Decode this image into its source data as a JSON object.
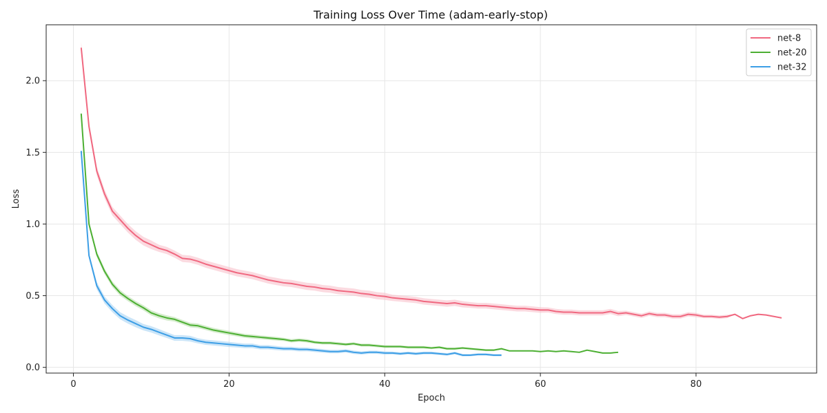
{
  "chart_data": {
    "type": "line",
    "title": "Training Loss Over Time (adam-early-stop)",
    "xlabel": "Epoch",
    "ylabel": "Loss",
    "xlim": [
      -3.5,
      95.5
    ],
    "ylim": [
      -0.04,
      2.39
    ],
    "xticks": [
      0,
      20,
      40,
      60,
      80
    ],
    "yticks": [
      0.0,
      0.5,
      1.0,
      1.5,
      2.0
    ],
    "xtick_labels": [
      "0",
      "20",
      "40",
      "60",
      "80"
    ],
    "ytick_labels": [
      "0.0",
      "0.5",
      "1.0",
      "1.5",
      "2.0"
    ],
    "grid": true,
    "legend_position": "top-right",
    "series": [
      {
        "name": "net-8",
        "color": "#f0677f",
        "band_color": "#f8c1cb",
        "x": [
          1,
          2,
          3,
          4,
          5,
          6,
          7,
          8,
          9,
          10,
          11,
          12,
          13,
          14,
          15,
          16,
          17,
          18,
          19,
          20,
          21,
          22,
          23,
          24,
          25,
          26,
          27,
          28,
          29,
          30,
          31,
          32,
          33,
          34,
          35,
          36,
          37,
          38,
          39,
          40,
          41,
          42,
          43,
          44,
          45,
          46,
          47,
          48,
          49,
          50,
          51,
          52,
          53,
          54,
          55,
          56,
          57,
          58,
          59,
          60,
          61,
          62,
          63,
          64,
          65,
          66,
          67,
          68,
          69,
          70,
          71,
          72,
          73,
          74,
          75,
          76,
          77,
          78,
          79,
          80,
          81,
          82,
          83,
          84,
          85,
          86,
          87,
          88,
          89,
          90,
          91
        ],
        "y": [
          2.23,
          1.68,
          1.37,
          1.21,
          1.09,
          1.03,
          0.97,
          0.92,
          0.88,
          0.855,
          0.83,
          0.815,
          0.79,
          0.76,
          0.755,
          0.74,
          0.72,
          0.705,
          0.69,
          0.675,
          0.66,
          0.65,
          0.64,
          0.625,
          0.61,
          0.6,
          0.59,
          0.585,
          0.575,
          0.565,
          0.56,
          0.55,
          0.545,
          0.535,
          0.53,
          0.525,
          0.515,
          0.51,
          0.5,
          0.495,
          0.485,
          0.48,
          0.475,
          0.47,
          0.46,
          0.455,
          0.45,
          0.445,
          0.45,
          0.44,
          0.435,
          0.43,
          0.43,
          0.425,
          0.42,
          0.415,
          0.41,
          0.41,
          0.405,
          0.4,
          0.4,
          0.39,
          0.385,
          0.385,
          0.38,
          0.38,
          0.38,
          0.38,
          0.39,
          0.375,
          0.38,
          0.37,
          0.36,
          0.375,
          0.365,
          0.365,
          0.355,
          0.355,
          0.37,
          0.365,
          0.355,
          0.355,
          0.35,
          0.355,
          0.37,
          0.34,
          0.36,
          0.37,
          0.365,
          0.355,
          0.345
        ],
        "band": [
          0.04,
          0.03,
          0.03,
          0.03,
          0.03,
          0.03,
          0.03,
          0.03,
          0.03,
          0.03,
          0.025,
          0.025,
          0.025,
          0.025,
          0.025,
          0.025,
          0.025,
          0.025,
          0.025,
          0.025,
          0.025,
          0.025,
          0.025,
          0.025,
          0.025,
          0.025,
          0.025,
          0.025,
          0.025,
          0.025,
          0.025,
          0.025,
          0.025,
          0.025,
          0.025,
          0.025,
          0.025,
          0.025,
          0.025,
          0.025,
          0.022,
          0.022,
          0.022,
          0.022,
          0.022,
          0.022,
          0.022,
          0.022,
          0.022,
          0.022,
          0.02,
          0.02,
          0.02,
          0.02,
          0.02,
          0.02,
          0.02,
          0.02,
          0.02,
          0.02,
          0.018,
          0.018,
          0.018,
          0.018,
          0.018,
          0.018,
          0.018,
          0.018,
          0.018,
          0.018,
          0.015,
          0.015,
          0.015,
          0.015,
          0.015,
          0.015,
          0.015,
          0.015,
          0.015,
          0.015,
          0.012,
          0.012,
          0.012,
          0.012,
          0,
          0,
          0,
          0,
          0,
          0,
          0
        ]
      },
      {
        "name": "net-20",
        "color": "#4caf32",
        "band_color": "#b9e0ac",
        "x": [
          1,
          2,
          3,
          4,
          5,
          6,
          7,
          8,
          9,
          10,
          11,
          12,
          13,
          14,
          15,
          16,
          17,
          18,
          19,
          20,
          21,
          22,
          23,
          24,
          25,
          26,
          27,
          28,
          29,
          30,
          31,
          32,
          33,
          34,
          35,
          36,
          37,
          38,
          39,
          40,
          41,
          42,
          43,
          44,
          45,
          46,
          47,
          48,
          49,
          50,
          51,
          52,
          53,
          54,
          55,
          56,
          57,
          58,
          59,
          60,
          61,
          62,
          63,
          64,
          65,
          66,
          67,
          68,
          69,
          70
        ],
        "y": [
          1.77,
          1.0,
          0.79,
          0.67,
          0.58,
          0.52,
          0.48,
          0.445,
          0.415,
          0.38,
          0.36,
          0.345,
          0.335,
          0.315,
          0.295,
          0.29,
          0.275,
          0.26,
          0.25,
          0.24,
          0.23,
          0.22,
          0.215,
          0.21,
          0.205,
          0.2,
          0.195,
          0.185,
          0.19,
          0.185,
          0.175,
          0.17,
          0.17,
          0.165,
          0.16,
          0.165,
          0.155,
          0.155,
          0.15,
          0.145,
          0.145,
          0.145,
          0.14,
          0.14,
          0.14,
          0.135,
          0.14,
          0.13,
          0.13,
          0.135,
          0.13,
          0.125,
          0.12,
          0.12,
          0.13,
          0.115,
          0.115,
          0.115,
          0.115,
          0.11,
          0.115,
          0.11,
          0.115,
          0.11,
          0.105,
          0.12,
          0.11,
          0.1,
          0.1,
          0.105
        ],
        "band": [
          0.025,
          0.02,
          0.02,
          0.02,
          0.02,
          0.02,
          0.018,
          0.018,
          0.018,
          0.018,
          0.018,
          0.018,
          0.016,
          0.016,
          0.016,
          0.016,
          0.015,
          0.015,
          0.015,
          0.015,
          0.014,
          0.014,
          0.014,
          0.013,
          0.013,
          0.013,
          0.012,
          0.012,
          0.012,
          0.012,
          0.011,
          0.011,
          0.011,
          0.011,
          0.01,
          0.01,
          0.01,
          0.01,
          0.01,
          0.01,
          0.009,
          0.009,
          0.009,
          0.009,
          0.009,
          0.008,
          0.008,
          0.008,
          0.008,
          0.008,
          0.007,
          0.007,
          0.007,
          0.007,
          0.006,
          0,
          0,
          0,
          0,
          0,
          0,
          0,
          0,
          0,
          0,
          0,
          0,
          0,
          0,
          0
        ]
      },
      {
        "name": "net-32",
        "color": "#3c9ee6",
        "band_color": "#a9d4f4",
        "x": [
          1,
          2,
          3,
          4,
          5,
          6,
          7,
          8,
          9,
          10,
          11,
          12,
          13,
          14,
          15,
          16,
          17,
          18,
          19,
          20,
          21,
          22,
          23,
          24,
          25,
          26,
          27,
          28,
          29,
          30,
          31,
          32,
          33,
          34,
          35,
          36,
          37,
          38,
          39,
          40,
          41,
          42,
          43,
          44,
          45,
          46,
          47,
          48,
          49,
          50,
          51,
          52,
          53,
          54,
          55
        ],
        "y": [
          1.51,
          0.78,
          0.57,
          0.47,
          0.41,
          0.36,
          0.33,
          0.305,
          0.28,
          0.265,
          0.245,
          0.225,
          0.205,
          0.205,
          0.2,
          0.185,
          0.175,
          0.17,
          0.165,
          0.16,
          0.155,
          0.15,
          0.15,
          0.14,
          0.14,
          0.135,
          0.13,
          0.13,
          0.125,
          0.125,
          0.12,
          0.115,
          0.11,
          0.11,
          0.115,
          0.105,
          0.1,
          0.105,
          0.105,
          0.1,
          0.1,
          0.095,
          0.1,
          0.095,
          0.1,
          0.1,
          0.095,
          0.09,
          0.1,
          0.085,
          0.085,
          0.09,
          0.09,
          0.085,
          0.085
        ],
        "band": [
          0.02,
          0.02,
          0.025,
          0.025,
          0.025,
          0.025,
          0.025,
          0.025,
          0.022,
          0.022,
          0.022,
          0.02,
          0.02,
          0.02,
          0.02,
          0.018,
          0.018,
          0.018,
          0.018,
          0.018,
          0.016,
          0.016,
          0.016,
          0.015,
          0.015,
          0.015,
          0.014,
          0.014,
          0.014,
          0.013,
          0.013,
          0.013,
          0.012,
          0.012,
          0.012,
          0.012,
          0.011,
          0.011,
          0.011,
          0.011,
          0.01,
          0.01,
          0.01,
          0.01,
          0.01,
          0.01,
          0.009,
          0.009,
          0.009,
          0.009,
          0.008,
          0.008,
          0.008,
          0.008,
          0.008
        ]
      }
    ]
  }
}
